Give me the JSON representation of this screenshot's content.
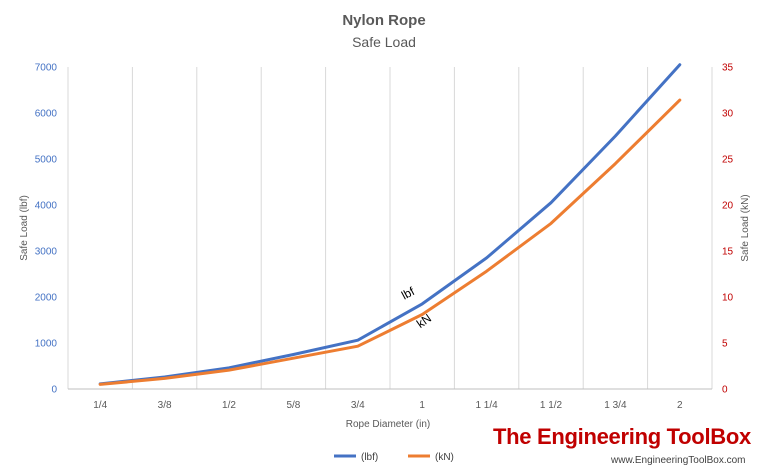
{
  "chart_data": {
    "type": "line",
    "title": "Nylon Rope",
    "subtitle": "Safe Load",
    "xlabel": "Rope Diameter (in)",
    "ylabel_left": "Safe Load (lbf)",
    "ylabel_right": "Safe Load (kN)",
    "categories": [
      "1/4",
      "3/8",
      "1/2",
      "5/8",
      "3/4",
      "1",
      "1 1/4",
      "1 1/2",
      "1 3/4",
      "2"
    ],
    "ylim_left": [
      0,
      7000
    ],
    "yticks_left": [
      0,
      1000,
      2000,
      3000,
      4000,
      5000,
      6000,
      7000
    ],
    "ylim_right": [
      0,
      35
    ],
    "yticks_right": [
      0,
      5,
      10,
      15,
      20,
      25,
      30,
      35
    ],
    "grid": "vertical",
    "legend_position": "bottom",
    "series": [
      {
        "name": "(lbf)",
        "axis": "left",
        "color": "#4472c4",
        "values": [
          110,
          260,
          460,
          750,
          1060,
          1850,
          2850,
          4050,
          5500,
          7050
        ]
      },
      {
        "name": "(kN)",
        "axis": "right",
        "color": "#ed7d31",
        "values": [
          0.5,
          1.15,
          2.05,
          3.35,
          4.65,
          8.1,
          12.8,
          18.0,
          24.5,
          31.4
        ]
      }
    ],
    "annotations": [
      {
        "text": "lbf",
        "series": 0,
        "category": "1"
      },
      {
        "text": "kN",
        "series": 1,
        "category": "1"
      }
    ]
  },
  "watermark": {
    "brand": "The Engineering ToolBox",
    "url": "www.EngineeringToolBox.com",
    "color": "#c00000"
  }
}
